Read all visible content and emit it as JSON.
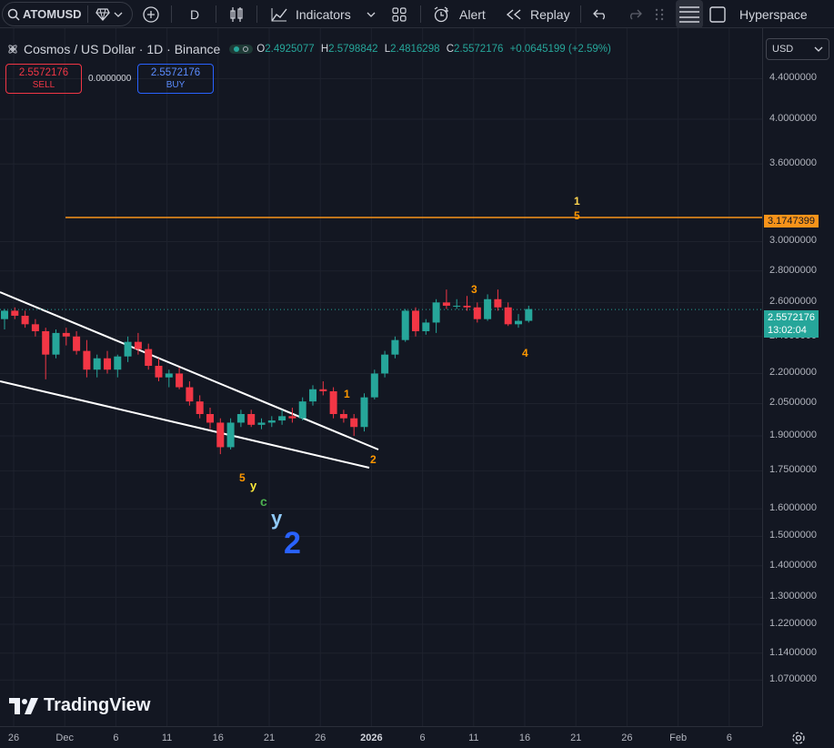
{
  "toolbar": {
    "symbol": "ATOMUSD",
    "interval": "D",
    "indicators_label": "Indicators",
    "alert_label": "Alert",
    "replay_label": "Replay",
    "layout_name": "Hyperspace"
  },
  "legend": {
    "title": "Cosmos / US Dollar · 1D · Binance",
    "o_key": "O",
    "o_val": "2.4925077",
    "h_key": "H",
    "h_val": "2.5798842",
    "l_key": "L",
    "l_val": "2.4816298",
    "c_key": "C",
    "c_val": "2.5572176",
    "change": "+0.0645199 (+2.59%)"
  },
  "trade": {
    "sell_price": "2.5572176",
    "sell_label": "SELL",
    "spread": "0.0000000",
    "buy_price": "2.5572176",
    "buy_label": "BUY"
  },
  "currency": "USD",
  "price_axis": {
    "labels": [
      "4.4000000",
      "4.0000000",
      "3.6000000",
      "3.0000000",
      "2.8000000",
      "2.6000000",
      "2.4000000",
      "2.2000000",
      "2.0500000",
      "1.9000000",
      "1.7500000",
      "1.6000000",
      "1.5000000",
      "1.4000000",
      "1.3000000",
      "1.2200000",
      "1.1400000",
      "1.0700000"
    ],
    "current_price": "2.5572176",
    "countdown": "13:02:04",
    "level_price": "3.1747399"
  },
  "time_axis": [
    "26",
    "Dec",
    "6",
    "11",
    "16",
    "21",
    "26",
    "2026",
    "6",
    "11",
    "16",
    "21",
    "26",
    "Feb",
    "6"
  ],
  "annotations": {
    "wave_1": "1",
    "wave_2": "2",
    "wave_3": "3",
    "wave_4": "4",
    "wave_top_1": "1",
    "wave_top_5": "5",
    "low_5": "5",
    "low_y_small": "y",
    "low_c": "c",
    "low_y": "y",
    "low_2": "2"
  },
  "brand": "TradingView",
  "colors": {
    "up": "#26a69a",
    "down": "#f23645",
    "bg": "#131722",
    "level_line": "#f7931a",
    "wave_orange": "#ff9800",
    "wave_blue": "#2962ff"
  },
  "chart_data": {
    "type": "candlestick",
    "symbol": "ATOMUSD",
    "scale": "log",
    "candles": [
      {
        "o": 2.5,
        "h": 2.56,
        "l": 2.44,
        "c": 2.55
      },
      {
        "o": 2.55,
        "h": 2.57,
        "l": 2.5,
        "c": 2.52
      },
      {
        "o": 2.52,
        "h": 2.55,
        "l": 2.45,
        "c": 2.47
      },
      {
        "o": 2.47,
        "h": 2.5,
        "l": 2.4,
        "c": 2.43
      },
      {
        "o": 2.43,
        "h": 2.45,
        "l": 2.17,
        "c": 2.3
      },
      {
        "o": 2.3,
        "h": 2.44,
        "l": 2.28,
        "c": 2.42
      },
      {
        "o": 2.42,
        "h": 2.45,
        "l": 2.35,
        "c": 2.4
      },
      {
        "o": 2.4,
        "h": 2.43,
        "l": 2.3,
        "c": 2.32
      },
      {
        "o": 2.32,
        "h": 2.38,
        "l": 2.18,
        "c": 2.22
      },
      {
        "o": 2.22,
        "h": 2.3,
        "l": 2.18,
        "c": 2.28
      },
      {
        "o": 2.28,
        "h": 2.32,
        "l": 2.2,
        "c": 2.22
      },
      {
        "o": 2.22,
        "h": 2.3,
        "l": 2.18,
        "c": 2.29
      },
      {
        "o": 2.29,
        "h": 2.4,
        "l": 2.26,
        "c": 2.37
      },
      {
        "o": 2.37,
        "h": 2.42,
        "l": 2.3,
        "c": 2.33
      },
      {
        "o": 2.33,
        "h": 2.36,
        "l": 2.22,
        "c": 2.24
      },
      {
        "o": 2.24,
        "h": 2.28,
        "l": 2.16,
        "c": 2.18
      },
      {
        "o": 2.18,
        "h": 2.22,
        "l": 2.13,
        "c": 2.2
      },
      {
        "o": 2.2,
        "h": 2.23,
        "l": 2.12,
        "c": 2.13
      },
      {
        "o": 2.13,
        "h": 2.16,
        "l": 2.04,
        "c": 2.06
      },
      {
        "o": 2.06,
        "h": 2.09,
        "l": 1.98,
        "c": 2.0
      },
      {
        "o": 2.0,
        "h": 2.03,
        "l": 1.93,
        "c": 1.96
      },
      {
        "o": 1.96,
        "h": 1.98,
        "l": 1.82,
        "c": 1.85
      },
      {
        "o": 1.85,
        "h": 1.98,
        "l": 1.84,
        "c": 1.96
      },
      {
        "o": 1.96,
        "h": 2.02,
        "l": 1.94,
        "c": 2.0
      },
      {
        "o": 2.0,
        "h": 2.02,
        "l": 1.94,
        "c": 1.95
      },
      {
        "o": 1.95,
        "h": 1.98,
        "l": 1.93,
        "c": 1.96
      },
      {
        "o": 1.96,
        "h": 1.99,
        "l": 1.94,
        "c": 1.97
      },
      {
        "o": 1.97,
        "h": 2.02,
        "l": 1.95,
        "c": 1.99
      },
      {
        "o": 1.99,
        "h": 2.03,
        "l": 1.96,
        "c": 1.98
      },
      {
        "o": 1.98,
        "h": 2.08,
        "l": 1.97,
        "c": 2.06
      },
      {
        "o": 2.06,
        "h": 2.14,
        "l": 2.04,
        "c": 2.12
      },
      {
        "o": 2.12,
        "h": 2.16,
        "l": 2.09,
        "c": 2.11
      },
      {
        "o": 2.11,
        "h": 2.13,
        "l": 1.98,
        "c": 2.0
      },
      {
        "o": 2.0,
        "h": 2.02,
        "l": 1.96,
        "c": 1.98
      },
      {
        "o": 1.98,
        "h": 2.0,
        "l": 1.9,
        "c": 1.94
      },
      {
        "o": 1.94,
        "h": 2.1,
        "l": 1.92,
        "c": 2.08
      },
      {
        "o": 2.08,
        "h": 2.22,
        "l": 2.07,
        "c": 2.2
      },
      {
        "o": 2.2,
        "h": 2.32,
        "l": 2.18,
        "c": 2.3
      },
      {
        "o": 2.3,
        "h": 2.4,
        "l": 2.28,
        "c": 2.38
      },
      {
        "o": 2.38,
        "h": 2.56,
        "l": 2.37,
        "c": 2.55
      },
      {
        "o": 2.55,
        "h": 2.57,
        "l": 2.4,
        "c": 2.43
      },
      {
        "o": 2.43,
        "h": 2.5,
        "l": 2.41,
        "c": 2.48
      },
      {
        "o": 2.48,
        "h": 2.62,
        "l": 2.42,
        "c": 2.6
      },
      {
        "o": 2.6,
        "h": 2.68,
        "l": 2.56,
        "c": 2.58
      },
      {
        "o": 2.58,
        "h": 2.62,
        "l": 2.56,
        "c": 2.58
      },
      {
        "o": 2.58,
        "h": 2.64,
        "l": 2.55,
        "c": 2.57
      },
      {
        "o": 2.57,
        "h": 2.6,
        "l": 2.48,
        "c": 2.5
      },
      {
        "o": 2.5,
        "h": 2.65,
        "l": 2.49,
        "c": 2.62
      },
      {
        "o": 2.62,
        "h": 2.68,
        "l": 2.55,
        "c": 2.57
      },
      {
        "o": 2.57,
        "h": 2.6,
        "l": 2.46,
        "c": 2.47
      },
      {
        "o": 2.47,
        "h": 2.53,
        "l": 2.45,
        "c": 2.49
      },
      {
        "o": 2.49,
        "h": 2.58,
        "l": 2.48,
        "c": 2.56
      }
    ],
    "price_line": 3.1747399,
    "current_price": 2.5572176
  }
}
